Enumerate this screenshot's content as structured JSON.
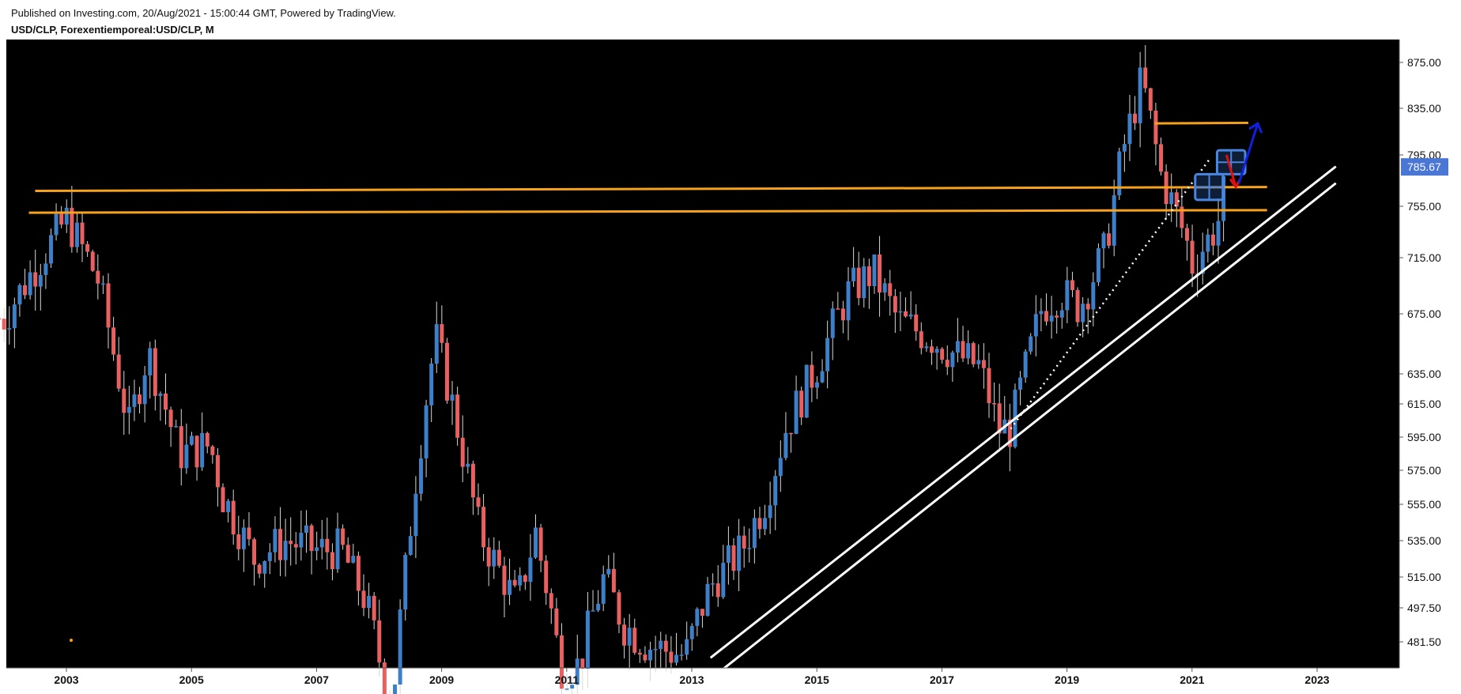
{
  "header": {
    "published": "Published on Investing.com, 20/Aug/2021 - 15:00:44 GMT, Powered by TradingView.",
    "symbol": "USD/CLP, Forexentiemporeal:USD/CLP, M"
  },
  "colors": {
    "background": "#000000",
    "up": "#3d7fc9",
    "down": "#e8605f",
    "orange_line": "#f7a21b",
    "trend_line": "#ffffff",
    "price_label": "#4a76d6",
    "arrow_up": "#1020e0",
    "arrow_down": "#e01010"
  },
  "chart_data": {
    "type": "candlestick",
    "interval": "M",
    "y_ticks": [
      481.5,
      497.5,
      515.0,
      535.0,
      555.0,
      575.0,
      595.0,
      615.0,
      635.0,
      675.0,
      715.0,
      755.0,
      795.0,
      835.0,
      875.0
    ],
    "y_tick_labels": [
      "481.50",
      "497.50",
      "515.00",
      "535.00",
      "555.00",
      "575.00",
      "595.00",
      "615.00",
      "635.00",
      "675.00",
      "715.00",
      "755.00",
      "795.00",
      "835.00",
      "875.00"
    ],
    "x_ticks": [
      "2003",
      "2005",
      "2007",
      "2009",
      "2011",
      "2013",
      "2015",
      "2017",
      "2019",
      "2021",
      "2023"
    ],
    "last_price": "785.67",
    "closes": [
      [
        2002.0,
        672
      ],
      [
        2003.0,
        745
      ],
      [
        2003.5,
        700
      ],
      [
        2004.0,
        600
      ],
      [
        2004.3,
        650
      ],
      [
        2004.8,
        585
      ],
      [
        2005.3,
        590
      ],
      [
        2005.5,
        560
      ],
      [
        2006.0,
        525
      ],
      [
        2006.5,
        535
      ],
      [
        2007.0,
        530
      ],
      [
        2007.4,
        530
      ],
      [
        2007.8,
        500
      ],
      [
        2008.2,
        448
      ],
      [
        2008.6,
        575
      ],
      [
        2008.9,
        660
      ],
      [
        2009.2,
        610
      ],
      [
        2009.6,
        540
      ],
      [
        2010.2,
        500
      ],
      [
        2010.5,
        540
      ],
      [
        2010.9,
        470
      ],
      [
        2011.2,
        470
      ],
      [
        2011.6,
        515
      ],
      [
        2011.9,
        490
      ],
      [
        2012.3,
        480
      ],
      [
        2012.9,
        475
      ],
      [
        2013.3,
        510
      ],
      [
        2013.8,
        530
      ],
      [
        2014.2,
        560
      ],
      [
        2014.5,
        600
      ],
      [
        2015.0,
        640
      ],
      [
        2015.5,
        690
      ],
      [
        2015.9,
        705
      ],
      [
        2016.3,
        670
      ],
      [
        2016.8,
        660
      ],
      [
        2017.2,
        648
      ],
      [
        2017.6,
        640
      ],
      [
        2017.9,
        600
      ],
      [
        2018.1,
        600
      ],
      [
        2018.6,
        680
      ],
      [
        2018.9,
        690
      ],
      [
        2019.2,
        680
      ],
      [
        2019.6,
        720
      ],
      [
        2019.9,
        800
      ],
      [
        2020.2,
        860
      ],
      [
        2020.5,
        780
      ],
      [
        2020.9,
        730
      ],
      [
        2021.0,
        710
      ],
      [
        2021.4,
        740
      ],
      [
        2021.6,
        785.67
      ]
    ],
    "horizontal_levels": [
      {
        "from": 2002.5,
        "to": 2022.2,
        "y1": 767.0,
        "y2": 770.0
      },
      {
        "from": 2002.4,
        "to": 2022.2,
        "y1": 750.0,
        "y2": 752.0
      },
      {
        "from": 2020.4,
        "to": 2021.9,
        "y1": 822.0,
        "y2": 822.5
      }
    ],
    "trend_lines": [
      {
        "x1": 2013.3,
        "y1": 464.0,
        "x2": 2023.3,
        "y2": 773.0
      },
      {
        "x1": 2013.3,
        "y1": 474.0,
        "x2": 2023.3,
        "y2": 786.0
      }
    ],
    "dotted_line": {
      "x1": 2018.1,
      "y1": 600.0,
      "x2": 2021.3,
      "y2": 793.0
    },
    "boxes": [
      {
        "x1": 2021.05,
        "x2": 2021.5,
        "y1": 760.0,
        "y2": 780.0
      },
      {
        "x1": 2021.4,
        "x2": 2021.85,
        "y1": 780.0,
        "y2": 799.0
      }
    ]
  }
}
